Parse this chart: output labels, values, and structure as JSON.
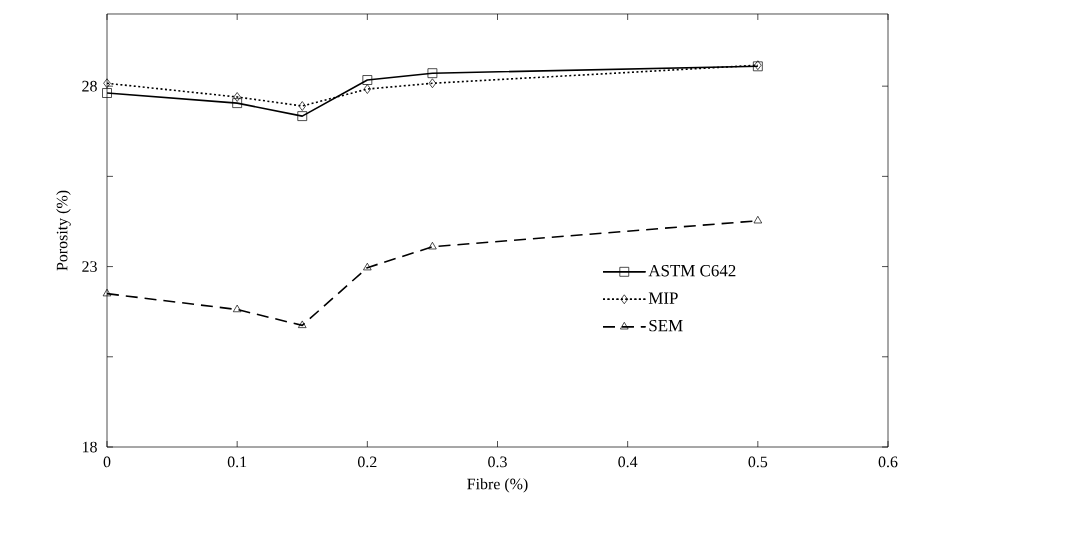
{
  "chart_data": {
    "type": "line",
    "xlabel": "Fibre (%)",
    "ylabel": "Porosity (%)",
    "x": [
      0,
      0.1,
      0.15,
      0.2,
      0.25,
      0.5
    ],
    "series": [
      {
        "name": "ASTM C642",
        "color": "#000000",
        "marker": "square",
        "line_style": "solid",
        "values": [
          27.81,
          27.53,
          27.17,
          28.17,
          28.36,
          28.55
        ]
      },
      {
        "name": "MIP",
        "color": "#000000",
        "marker": "diamond",
        "line_style": "dotted",
        "values": [
          28.08,
          27.7,
          27.45,
          27.92,
          28.08,
          28.58
        ]
      },
      {
        "name": "SEM",
        "color": "#000000",
        "marker": "triangle",
        "line_style": "dashed",
        "values": [
          22.25,
          21.81,
          21.37,
          22.97,
          23.55,
          24.27
        ]
      }
    ],
    "xlim": [
      0,
      0.6
    ],
    "ylim": [
      18,
      30
    ],
    "xticks": [
      0,
      0.1,
      0.2,
      0.3,
      0.4,
      0.5,
      0.6
    ],
    "yticks": [
      18,
      {
        "value": 20.5,
        "label": null
      },
      23,
      {
        "value": 25.5,
        "label": null
      },
      28
    ],
    "legend": "right",
    "grid": false
  }
}
